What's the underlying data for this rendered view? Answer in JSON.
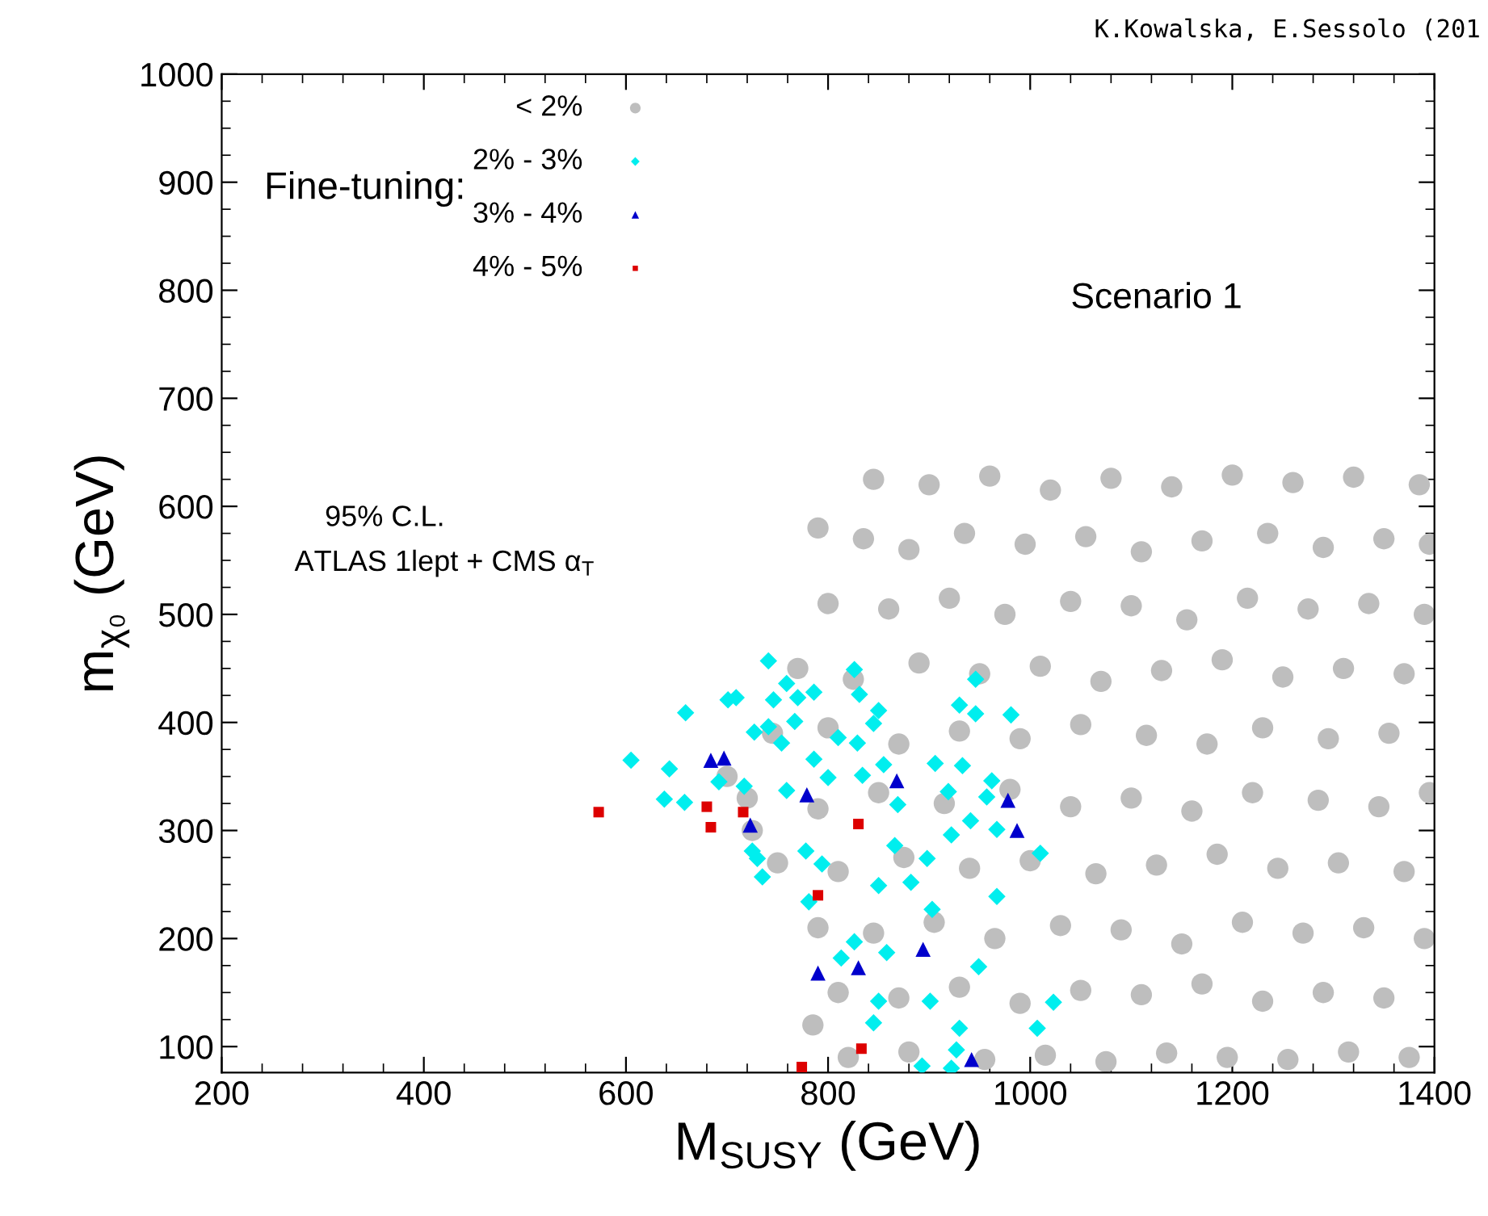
{
  "chart_data": {
    "type": "scatter",
    "xlabel": "M$_{SUSY}$ (GeV)",
    "ylabel": "m$_{χ₀}$ (GeV)",
    "legend_title": "Fine-tuning:",
    "annotations": [
      "K.Kowalska, E.Sessolo (201",
      "Scenario 1",
      "95% C.L.",
      "ATLAS 1lept + CMS α$_{T}$"
    ],
    "xlim": [
      200,
      1400
    ],
    "ylim": [
      76,
      1000
    ],
    "xticks": [
      200,
      400,
      600,
      800,
      1000,
      1200,
      1400
    ],
    "yticks": [
      100,
      200,
      300,
      400,
      500,
      600,
      700,
      800,
      900,
      1000
    ],
    "grid": false,
    "legend": "top left",
    "series": [
      {
        "name": "< 2%",
        "color": "#bebebe",
        "marker": "circle",
        "x": [
          790,
          845,
          900,
          960,
          1020,
          1080,
          1140,
          1200,
          1260,
          1320,
          1385,
          835,
          880,
          935,
          995,
          1055,
          1110,
          1170,
          1235,
          1290,
          1350,
          1395,
          800,
          860,
          920,
          975,
          1040,
          1100,
          1155,
          1215,
          1275,
          1335,
          1390,
          770,
          825,
          890,
          950,
          1010,
          1070,
          1130,
          1190,
          1250,
          1310,
          1370,
          745,
          800,
          870,
          930,
          990,
          1050,
          1115,
          1175,
          1230,
          1295,
          1355,
          720,
          790,
          850,
          915,
          980,
          1040,
          1100,
          1160,
          1220,
          1285,
          1345,
          1395,
          750,
          810,
          875,
          940,
          1000,
          1065,
          1125,
          1185,
          1245,
          1305,
          1370,
          790,
          845,
          905,
          965,
          1030,
          1090,
          1150,
          1210,
          1270,
          1330,
          1390,
          810,
          870,
          930,
          990,
          1050,
          1110,
          1170,
          1230,
          1290,
          1350,
          820,
          880,
          955,
          1015,
          1075,
          1135,
          1195,
          1255,
          1315,
          1375,
          700,
          725,
          785
        ],
        "values": [
          580,
          625,
          620,
          628,
          615,
          626,
          618,
          629,
          622,
          627,
          620,
          570,
          560,
          575,
          565,
          572,
          558,
          568,
          575,
          562,
          570,
          565,
          510,
          505,
          515,
          500,
          512,
          508,
          495,
          515,
          505,
          510,
          500,
          450,
          440,
          455,
          445,
          452,
          438,
          448,
          458,
          442,
          450,
          445,
          390,
          395,
          380,
          392,
          385,
          398,
          388,
          380,
          395,
          385,
          390,
          330,
          320,
          335,
          325,
          338,
          322,
          330,
          318,
          335,
          328,
          322,
          335,
          270,
          262,
          275,
          265,
          272,
          260,
          268,
          278,
          265,
          270,
          262,
          210,
          205,
          215,
          200,
          212,
          208,
          195,
          215,
          205,
          210,
          200,
          150,
          145,
          155,
          140,
          152,
          148,
          158,
          142,
          150,
          145,
          90,
          95,
          88,
          92,
          86,
          94,
          90,
          88,
          95,
          90,
          350,
          300,
          120
        ]
      },
      {
        "name": "2% - 3%",
        "color": "#00eeee",
        "marker": "diamond",
        "x": [
          741,
          826,
          759,
          786,
          831,
          850,
          845,
          701,
          709,
          659,
          746,
          770,
          946,
          930,
          946,
          981,
          727,
          741,
          754,
          767,
          810,
          829,
          605,
          643,
          692,
          717,
          759,
          786,
          800,
          834,
          855,
          906,
          933,
          962,
          638,
          658,
          919,
          957,
          922,
          869,
          941,
          967,
          725,
          730,
          735,
          778,
          794,
          866,
          898,
          850,
          882,
          1010,
          967,
          781,
          903,
          826,
          813,
          858,
          949,
          850,
          845,
          901,
          930,
          927,
          893,
          922,
          1007,
          1023
        ],
        "values": [
          457,
          449,
          436,
          428,
          426,
          411,
          399,
          421,
          423,
          409,
          421,
          423,
          440,
          416,
          408,
          407,
          391,
          396,
          381,
          401,
          386,
          381,
          365,
          357,
          345,
          341,
          337,
          366,
          349,
          351,
          361,
          362,
          360,
          346,
          329,
          326,
          336,
          331,
          296,
          324,
          309,
          301,
          281,
          274,
          257,
          281,
          269,
          286,
          274,
          249,
          252,
          279,
          239,
          234,
          227,
          197,
          182,
          187,
          174,
          142,
          122,
          142,
          117,
          97,
          82,
          80,
          117,
          141
        ]
      },
      {
        "name": "3% - 4%",
        "color": "#0000cc",
        "marker": "triangle",
        "x": [
          684,
          697,
          723,
          779,
          868,
          978,
          987,
          894,
          830,
          790,
          942
        ],
        "values": [
          365,
          367,
          305,
          333,
          346,
          328,
          300,
          190,
          173,
          168,
          88
        ]
      },
      {
        "name": "4% - 5%",
        "color": "#dd0000",
        "marker": "square",
        "x": [
          573,
          680,
          684,
          716,
          830,
          790,
          833,
          774
        ],
        "values": [
          317,
          322,
          303,
          317,
          306,
          240,
          98,
          81
        ]
      }
    ]
  }
}
